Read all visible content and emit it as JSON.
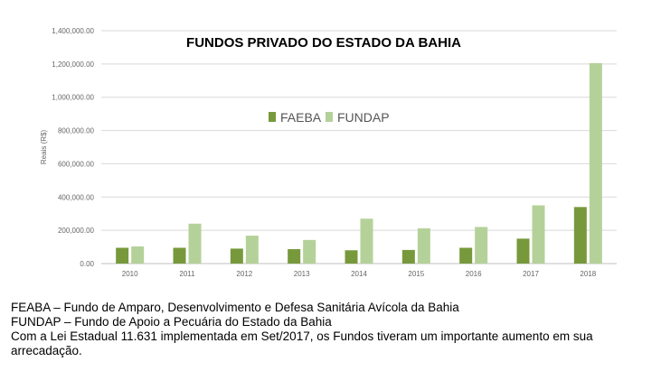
{
  "chart_data": {
    "type": "bar",
    "title": "FUNDOS PRIVADO DO ESTADO DA BAHIA",
    "xlabel": "",
    "ylabel": "Reais (R$)",
    "ylim": [
      0,
      1400000
    ],
    "yticks": [
      "0.00",
      "200,000.00",
      "400,000.00",
      "600,000.00",
      "800,000.00",
      "1,000,000.00",
      "1,200,000.00",
      "1,400,000.00"
    ],
    "categories": [
      "2010",
      "2011",
      "2012",
      "2013",
      "2014",
      "2015",
      "2016",
      "2017",
      "2018"
    ],
    "grid": true,
    "legend_position": "center",
    "series": [
      {
        "name": "FAEBA",
        "color": "#77993c",
        "values": [
          95000,
          95000,
          90000,
          87000,
          80000,
          82000,
          95000,
          150000,
          340000
        ]
      },
      {
        "name": "FUNDAP",
        "color": "#b5d19a",
        "values": [
          103000,
          240000,
          168000,
          142000,
          270000,
          212000,
          220000,
          350000,
          1205000
        ]
      }
    ]
  },
  "notes": [
    "FEABA – Fundo de Amparo, Desenvolvimento e Defesa Sanitária Avícola da Bahia",
    "FUNDAP – Fundo de Apoio a Pecuária do Estado da Bahia",
    "Com a Lei Estadual 11.631 implementada em Set/2017, os Fundos tiveram um importante aumento em sua arrecadação."
  ]
}
